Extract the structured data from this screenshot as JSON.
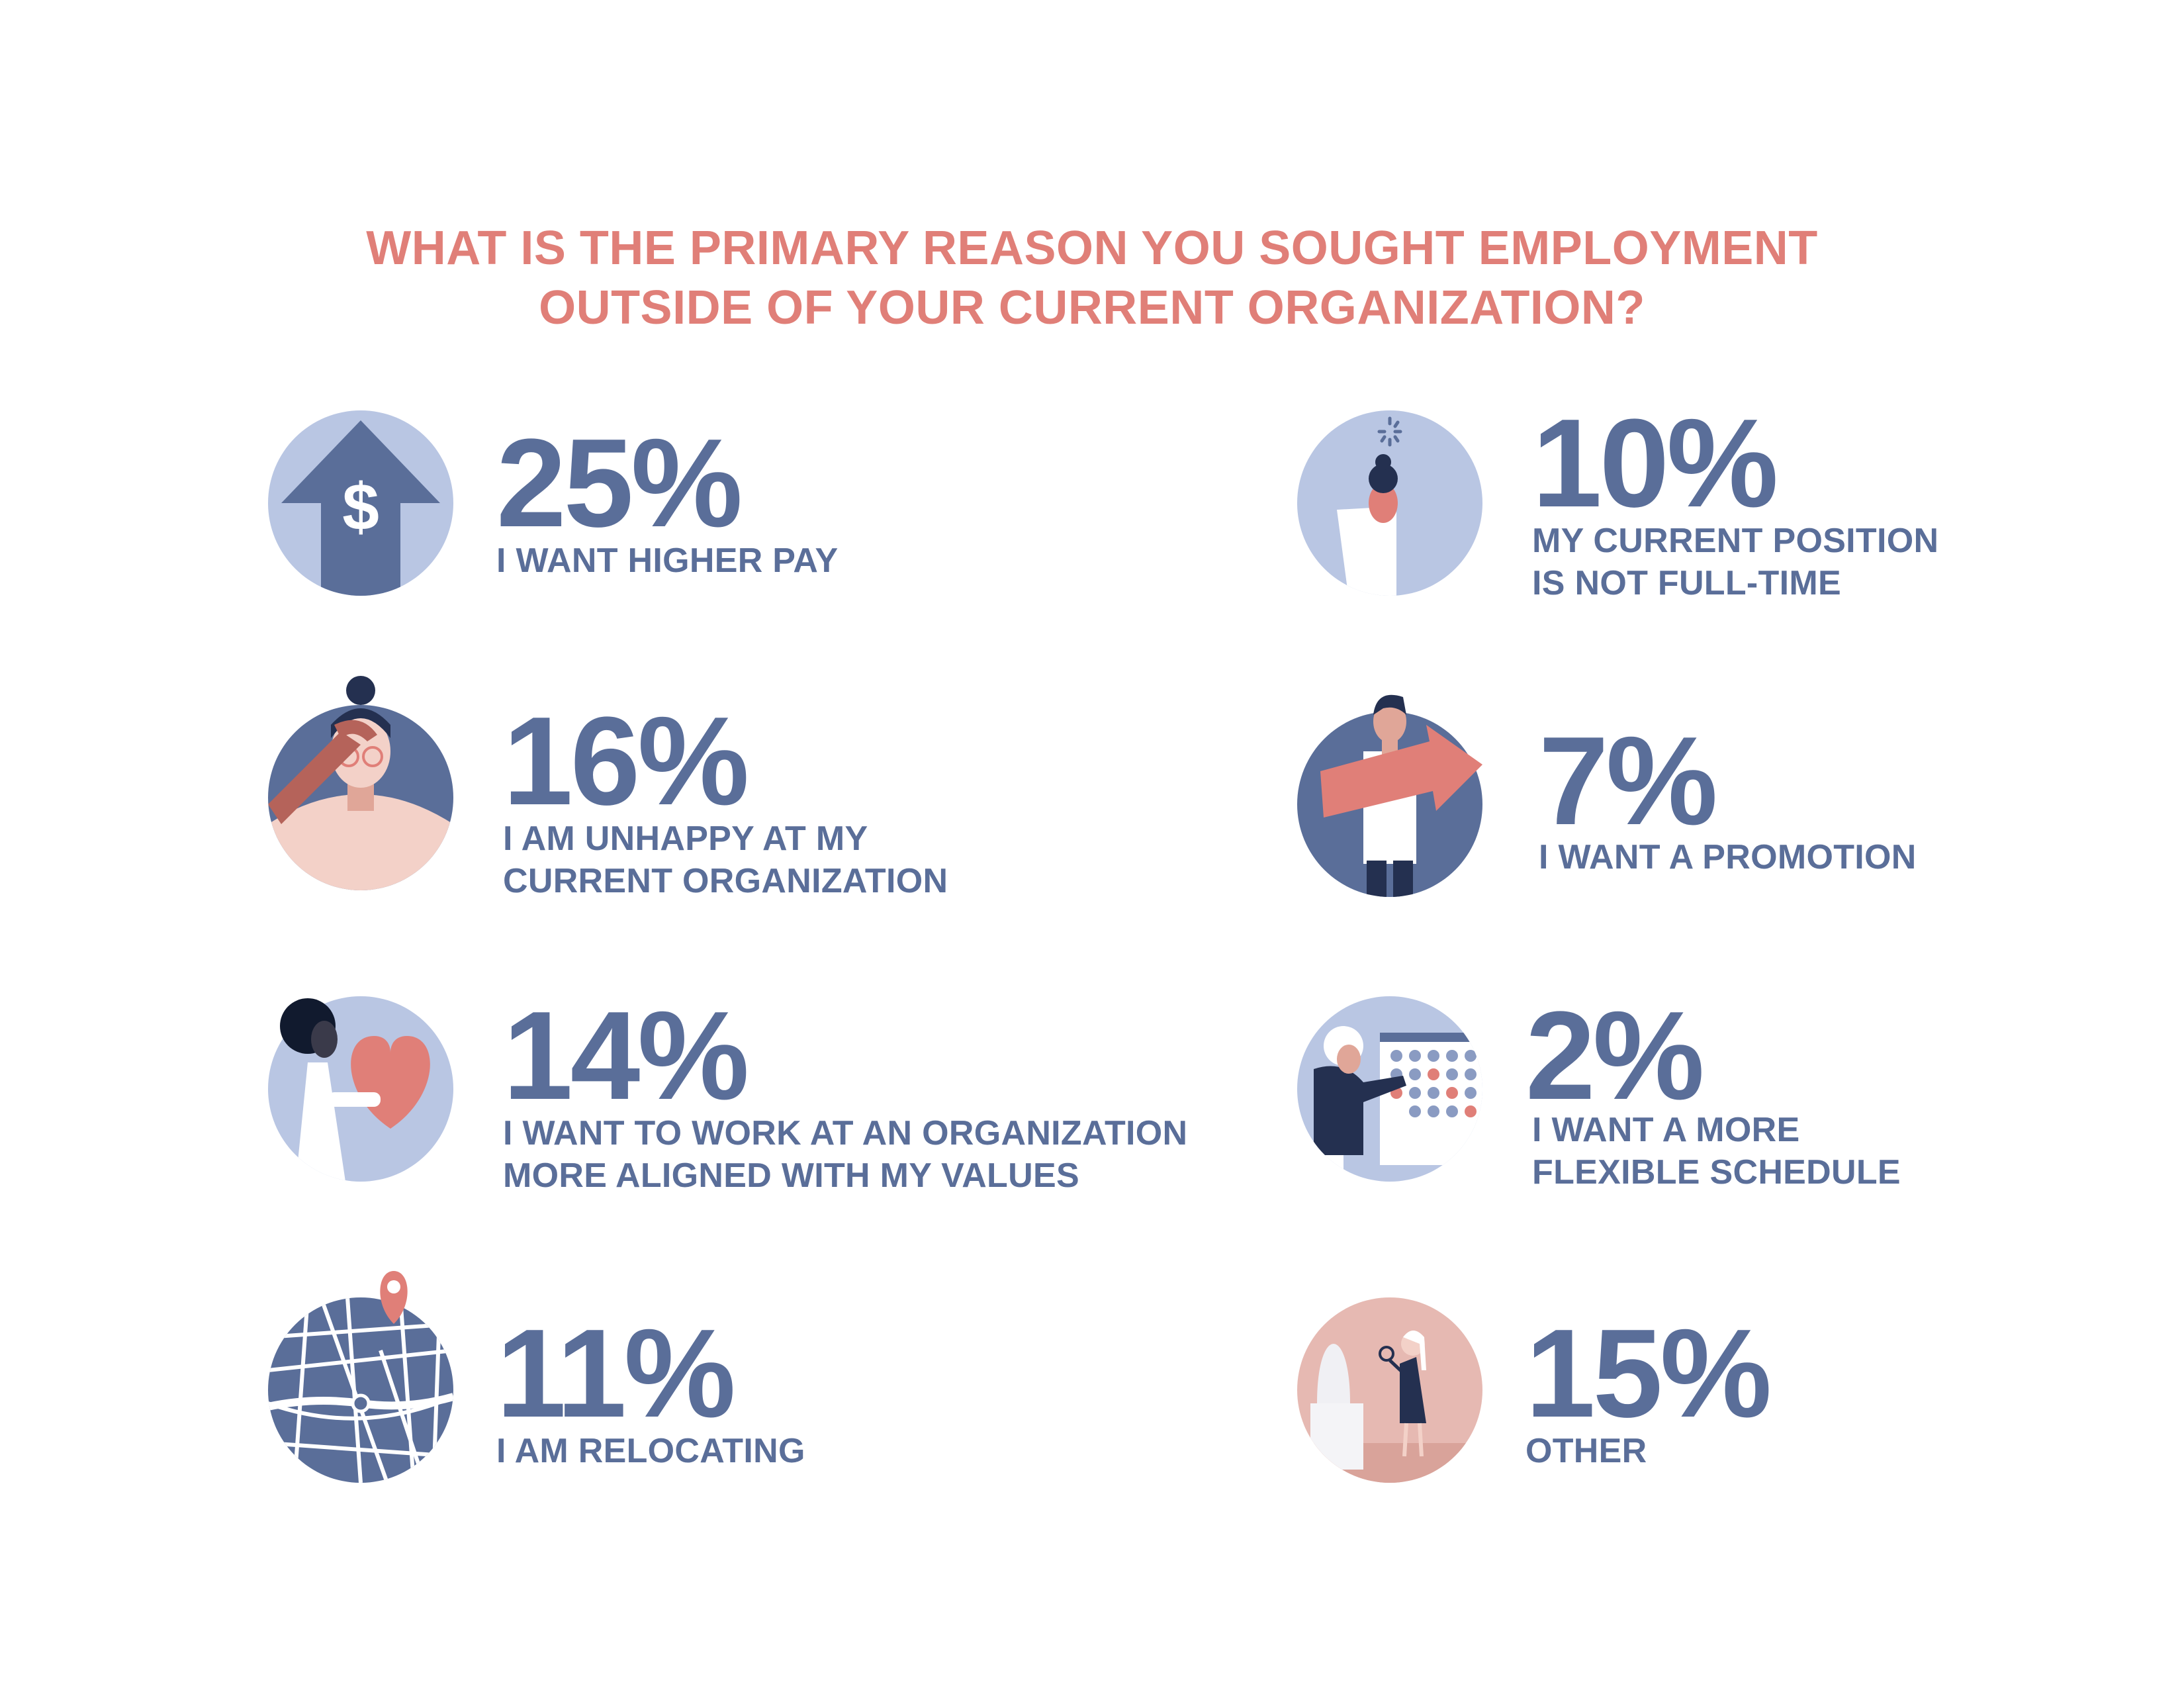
{
  "title": {
    "line1": "WHAT IS THE PRIMARY REASON YOU SOUGHT EMPLOYMENT",
    "line2": "OUTSIDE OF YOUR CURRENT ORGANIZATION?"
  },
  "colors": {
    "title": "#e07f78",
    "text": "#5a6e99",
    "icon_light": "#b9c6e3",
    "icon_dark": "#5a6e99",
    "accent": "#e07f78"
  },
  "chart_data": {
    "type": "table",
    "title": "WHAT IS THE PRIMARY REASON YOU SOUGHT EMPLOYMENT OUTSIDE OF YOUR CURRENT ORGANIZATION?",
    "unit": "%",
    "categories": [
      "I WANT HIGHER PAY",
      "I AM UNHAPPY AT MY CURRENT ORGANIZATION",
      "I WANT TO WORK AT AN ORGANIZATION MORE ALIGNED WITH MY VALUES",
      "I AM RELOCATING",
      "MY CURRENT POSITION IS NOT FULL-TIME",
      "I WANT A PROMOTION",
      "I WANT A MORE FLEXIBLE SCHEDULE",
      "OTHER"
    ],
    "values": [
      25,
      16,
      14,
      11,
      10,
      7,
      2,
      15
    ]
  },
  "items": [
    {
      "pct": "25%",
      "lines": [
        "I WANT HIGHER PAY"
      ],
      "icon": "dollar-arrow-icon"
    },
    {
      "pct": "16%",
      "lines": [
        "I AM UNHAPPY AT MY",
        "CURRENT ORGANIZATION"
      ],
      "icon": "frustrated-person-icon"
    },
    {
      "pct": "14%",
      "lines": [
        "I WANT TO WORK AT AN ORGANIZATION",
        "MORE ALIGNED WITH MY VALUES"
      ],
      "icon": "person-heart-icon"
    },
    {
      "pct": "11%",
      "lines": [
        "I AM RELOCATING"
      ],
      "icon": "map-pin-icon"
    },
    {
      "pct": "10%",
      "lines": [
        "MY CURRENT POSITION",
        "IS NOT FULL-TIME"
      ],
      "icon": "person-loading-icon"
    },
    {
      "pct": "7%",
      "lines": [
        "I WANT A PROMOTION"
      ],
      "icon": "person-arrow-icon"
    },
    {
      "pct": "2%",
      "lines": [
        "I WANT A MORE",
        "FLEXIBLE SCHEDULE"
      ],
      "icon": "person-calendar-icon"
    },
    {
      "pct": "15%",
      "lines": [
        "OTHER"
      ],
      "icon": "person-magnifier-icon"
    }
  ]
}
